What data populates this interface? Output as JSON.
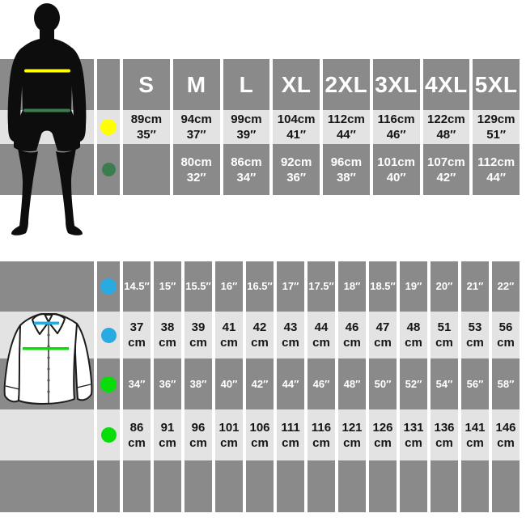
{
  "colors": {
    "row_dark": "#8a8a8a",
    "row_light": "#e3e3e3",
    "chest_marker_yellow": "#ffff00",
    "waist_marker_green": "#3b7d4f",
    "collar_marker_blue": "#29abe2",
    "chest_marker_bright_green": "#09dd09",
    "text_dark": "#151515",
    "text_light": "#ffffff",
    "silhouette_black": "#0d0d0d",
    "shirt_outline": "#1c1c1c",
    "shirt_fill": "#ffffff"
  },
  "body_size_table": {
    "icon": "male-silhouette",
    "size_labels": [
      "S",
      "M",
      "L",
      "XL",
      "2XL",
      "3XL",
      "4XL",
      "5XL"
    ],
    "rows": [
      {
        "marker": "chest",
        "dot_color": "#ffff00",
        "values": [
          {
            "cm": "89cm",
            "in": "35″"
          },
          {
            "cm": "94cm",
            "in": "37″"
          },
          {
            "cm": "99cm",
            "in": "39″"
          },
          {
            "cm": "104cm",
            "in": "41″"
          },
          {
            "cm": "112cm",
            "in": "44″"
          },
          {
            "cm": "116cm",
            "in": "46″"
          },
          {
            "cm": "122cm",
            "in": "48″"
          },
          {
            "cm": "129cm",
            "in": "51″"
          }
        ]
      },
      {
        "marker": "waist",
        "dot_color": "#3b7d4f",
        "values": [
          {
            "cm": "",
            "in": ""
          },
          {
            "cm": "80cm",
            "in": "32″"
          },
          {
            "cm": "86cm",
            "in": "34″"
          },
          {
            "cm": "92cm",
            "in": "36″"
          },
          {
            "cm": "96cm",
            "in": "38″"
          },
          {
            "cm": "101cm",
            "in": "40″"
          },
          {
            "cm": "107cm",
            "in": "42″"
          },
          {
            "cm": "112cm",
            "in": "44″"
          }
        ]
      }
    ]
  },
  "shirt_size_table": {
    "icon": "dress-shirt",
    "cm_suffix": "cm",
    "rows": [
      {
        "marker": "collar",
        "dot_color": "#29abe2",
        "unit": "in",
        "values": [
          "14.5″",
          "15″",
          "15.5″",
          "16″",
          "16.5″",
          "17″",
          "17.5″",
          "18″",
          "18.5″",
          "19″",
          "20″",
          "21″",
          "22″"
        ]
      },
      {
        "marker": "collar",
        "dot_color": "#29abe2",
        "unit": "cm",
        "values": [
          "37",
          "38",
          "39",
          "41",
          "42",
          "43",
          "44",
          "46",
          "47",
          "48",
          "51",
          "53",
          "56"
        ]
      },
      {
        "marker": "chest",
        "dot_color": "#09dd09",
        "unit": "in",
        "values": [
          "34″",
          "36″",
          "38″",
          "40″",
          "42″",
          "44″",
          "46″",
          "48″",
          "50″",
          "52″",
          "54″",
          "56″",
          "58″"
        ]
      },
      {
        "marker": "chest",
        "dot_color": "#09dd09",
        "unit": "cm",
        "values": [
          "86",
          "91",
          "96",
          "101",
          "106",
          "111",
          "116",
          "121",
          "126",
          "131",
          "136",
          "141",
          "146"
        ]
      }
    ]
  },
  "chart_data": [
    {
      "type": "table",
      "title": "Body measurements by garment size",
      "columns": [
        "S",
        "M",
        "L",
        "XL",
        "2XL",
        "3XL",
        "4XL",
        "5XL"
      ],
      "rows": [
        {
          "label": "chest (yellow marker)",
          "values_cm": [
            89,
            94,
            99,
            104,
            112,
            116,
            122,
            129
          ],
          "values_in": [
            35,
            37,
            39,
            41,
            44,
            46,
            48,
            51
          ]
        },
        {
          "label": "waist (dark-green marker)",
          "values_cm": [
            null,
            80,
            86,
            92,
            96,
            101,
            107,
            112
          ],
          "values_in": [
            null,
            32,
            34,
            36,
            38,
            40,
            42,
            44
          ]
        }
      ]
    },
    {
      "type": "table",
      "title": "Shirt collar and chest sizes",
      "rows": [
        {
          "label": "collar (blue marker) inches",
          "values": [
            14.5,
            15,
            15.5,
            16,
            16.5,
            17,
            17.5,
            18,
            18.5,
            19,
            20,
            21,
            22
          ]
        },
        {
          "label": "collar (blue marker) cm",
          "values": [
            37,
            38,
            39,
            41,
            42,
            43,
            44,
            46,
            47,
            48,
            51,
            53,
            56
          ]
        },
        {
          "label": "chest (green marker) inches",
          "values": [
            34,
            36,
            38,
            40,
            42,
            44,
            46,
            48,
            50,
            52,
            54,
            56,
            58
          ]
        },
        {
          "label": "chest (green marker) cm",
          "values": [
            86,
            91,
            96,
            101,
            106,
            111,
            116,
            121,
            126,
            131,
            136,
            141,
            146
          ]
        }
      ]
    }
  ]
}
